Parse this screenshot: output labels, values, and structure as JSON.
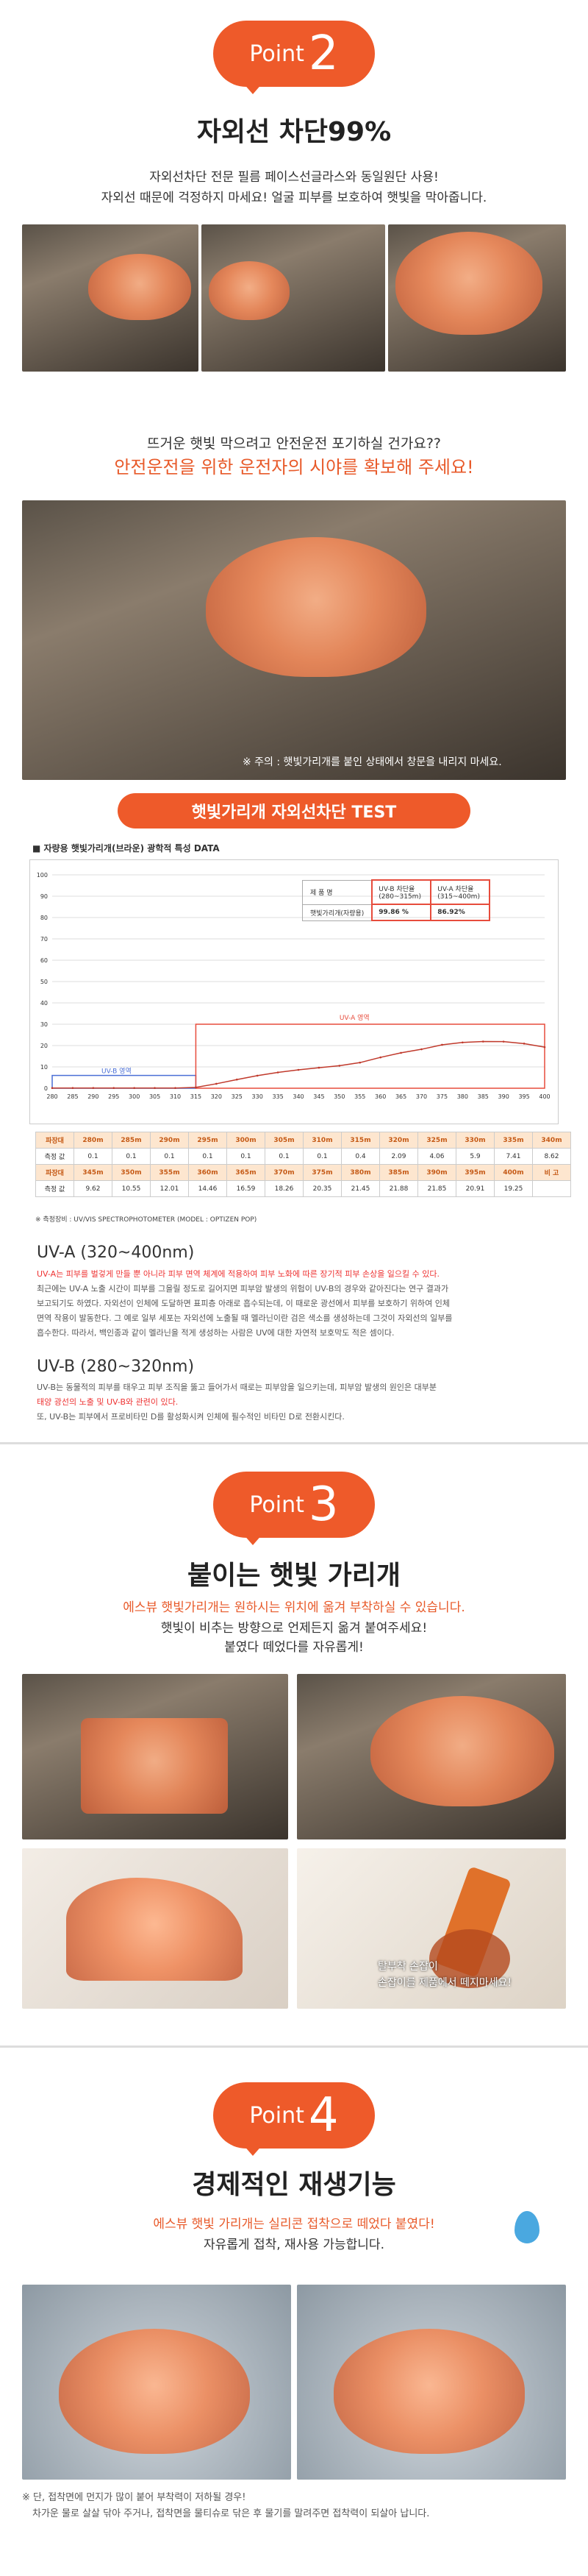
{
  "point2": {
    "label": "Point",
    "num": "2",
    "title": "자외선 차단99%",
    "desc1": "자외선차단 전문 필름 페이스선글라스와 동일원단 사용!",
    "desc2": "자외선 때문에 걱정하지 마세요! 얼굴 피부를 보호하여 햇빛을 막아줍니다.",
    "q1": "뜨거운 햇빛 막으려고 안전운전 포기하실 건가요??",
    "q2": "안전운전을 위한 운전자의 시야를 확보해 주세요!",
    "caution": "※ 주의 : 햇빛가리개를 붙인 상태에서 창문을 내리지 마세요."
  },
  "test": {
    "title": "햇빛가리개 자외선차단 TEST",
    "subtitle": "자량용 햇빛가리개(브라운) 광학적 특성 DATA",
    "legend_rows": [
      [
        "제 품 명",
        "UV-B 차단율 (280~315m)",
        "UV-A 차단율 (315~400m)"
      ],
      [
        "햇빛가리개(자량용)",
        "99.86 %",
        "86.92%"
      ]
    ],
    "region_a": "UV-A 영역",
    "region_b": "UV-B 영역",
    "table": {
      "row1_head": "파장대",
      "row1": [
        "280m",
        "285m",
        "290m",
        "295m",
        "300m",
        "305m",
        "310m",
        "315m",
        "320m",
        "325m",
        "330m",
        "335m",
        "340m"
      ],
      "row2_head": "측정 값",
      "row2": [
        "0.1",
        "0.1",
        "0.1",
        "0.1",
        "0.1",
        "0.1",
        "0.1",
        "0.4",
        "2.09",
        "4.06",
        "5.9",
        "7.41",
        "8.62"
      ],
      "row3_head": "파장대",
      "row3": [
        "345m",
        "350m",
        "355m",
        "360m",
        "365m",
        "370m",
        "375m",
        "380m",
        "385m",
        "390m",
        "395m",
        "400m",
        "비 고"
      ],
      "row4_head": "측정 값",
      "row4": [
        "9.62",
        "10.55",
        "12.01",
        "14.46",
        "16.59",
        "18.26",
        "20.35",
        "21.45",
        "21.88",
        "21.85",
        "20.91",
        "19.25",
        ""
      ]
    },
    "footnote": "※ 측정장비 : UV/VIS SPECTROPHOTOMETER (MODEL : OPTIZEN POP)"
  },
  "uva": {
    "title": "UV-A (320~400nm)",
    "body1": "UV-A는 피부를 벌겋게 만들 뿐 아니라 피부 면역 체계에 적용하여 피부 노화에 따른 장기적 피부 손상을 일으킬 수 있다.",
    "body2": "최근에는 UV-A 노출 시간이 피부를 그을릴 정도로 길어지면 피부암 발생의 위험이 UV-B의 경우와 같아진다는 연구 결과가",
    "body3": "보고되기도 하였다. 자외선이 인체에 도달하면 표피층 아래로 흡수되는데, 이 때로운 광선에서 피부를 보호하기 위하여 인체",
    "body4": "면역 작용이 발동한다. 그 예로 일부 세포는 자외선에 노출될 때 멜라닌이란 검은 색소를 생성하는데 그것이 자외선의 일부를",
    "body5": "흡수한다. 따라서, 백인종과 같이 멜라닌을 적게 생성하는 사람은 UV에 대한 자연적 보호막도 적은 셈이다."
  },
  "uvb": {
    "title": "UV-B (280~320nm)",
    "body1": "UV-B는 동물적의 피부를 태우고 피부 조직을 뚫고 들어가서 때로는 피부암을 일으키는데, 피부암 발생의 원인은 대부분",
    "body2": "태양 광선의 노출 및 UV-B와 관련이 있다.",
    "body3": "또, UV-B는 피부에서 프로비타민 D를 활성화시켜 인체에 필수적인 비타민 D로 전환시킨다."
  },
  "point3": {
    "label": "Point",
    "num": "3",
    "title": "붙이는 햇빛 가리개",
    "desc1": "에스뷰 햇빛가리개는 원하시는 위치에 옮겨 부착하실 수 있습니다.",
    "desc2": "햇빛이 비추는 방향으로 언제든지 옮겨 붙여주세요!",
    "desc3": "붙였다 떼었다를 자유롭게!",
    "cap1": "탈부착 손잡이",
    "cap2": "손잡이를 제품에서 떼지마세요!"
  },
  "point4": {
    "label": "Point",
    "num": "4",
    "title": "경제적인 재생기능",
    "desc1": "에스뷰 햇빛 가리개는 실리콘 접착으로 떼었다 붙였다!",
    "desc2": "자유롭게 접착, 재사용 가능합니다.",
    "note1": "※ 단, 접착면에 먼지가 많이 붙어 부착력이 저하될 경우!",
    "note2": "차가운 물로 살살 닦아 주거나, 접착면을 물티슈로 닦은 후 물기를 말려주면 접착력이 되살아 납니다."
  },
  "chart_data": {
    "type": "line",
    "title": "",
    "xlabel": "",
    "ylabel": "",
    "x": [
      280,
      285,
      290,
      295,
      300,
      305,
      310,
      315,
      320,
      325,
      330,
      335,
      340,
      345,
      350,
      355,
      360,
      365,
      370,
      375,
      380,
      385,
      390,
      395,
      400
    ],
    "ticks_x": [
      "280",
      "285",
      "290",
      "295",
      "300",
      "305",
      "310",
      "315",
      "320",
      "325",
      "330",
      "335",
      "340",
      "345",
      "350",
      "355",
      "360",
      "365",
      "370",
      "375",
      "380",
      "385",
      "390",
      "395",
      "400"
    ],
    "ticks_y": [
      "0",
      "10",
      "20",
      "30",
      "40",
      "50",
      "60",
      "70",
      "80",
      "90",
      "100"
    ],
    "series": [
      {
        "values": [
          0.1,
          0.1,
          0.1,
          0.1,
          0.1,
          0.1,
          0.1,
          0.4,
          2.09,
          4.06,
          5.9,
          7.41,
          8.62,
          9.62,
          10.55,
          12.01,
          14.46,
          16.59,
          18.26,
          20.35,
          21.45,
          21.88,
          21.85,
          20.91,
          19.25
        ]
      }
    ],
    "xlim": [
      280,
      400
    ],
    "ylim": [
      0,
      100
    ],
    "colors": {
      "line": "#c0392b",
      "box": "#e74c3c"
    }
  }
}
